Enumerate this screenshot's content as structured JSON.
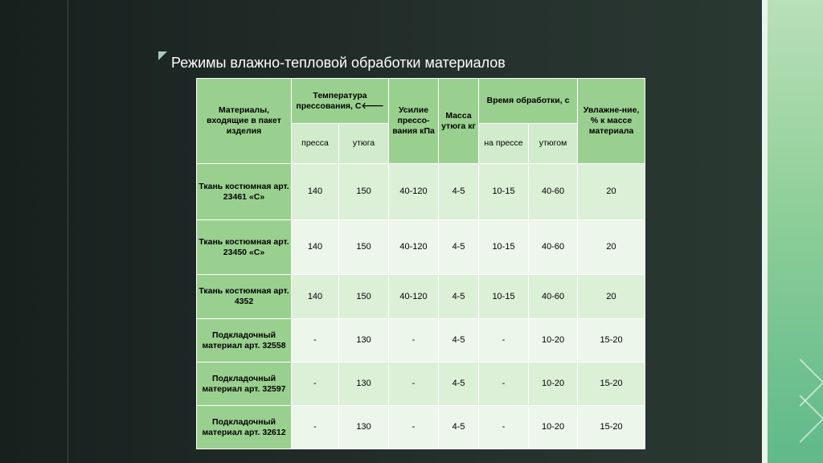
{
  "slide": {
    "title": "Режимы влажно-тепловой обработки материалов"
  },
  "table": {
    "headers": {
      "materials": "Материалы, входящие в пакет изделия",
      "temperature": "Температура прессования, С",
      "temperature_mark": "🡐",
      "press_force": "Усилие прессо-вания кПа",
      "iron_mass": "Масса утюга кг",
      "time": "Время обработки, с",
      "moisture": "Увлажне-ние, % к массе материала"
    },
    "subheaders": {
      "temp_press": "пресса",
      "temp_iron": "утюга",
      "time_press": "на прессе",
      "time_iron": "утюгом"
    },
    "rows": [
      {
        "material": "Ткань костюмная арт. 23461 «С»",
        "temp_press": "140",
        "temp_iron": "150",
        "force": "40-120",
        "mass": "4-5",
        "time_press": "10-15",
        "time_iron": "40-60",
        "moisture": "20"
      },
      {
        "material": "Ткань костюмная арт. 23450 «С»",
        "temp_press": "140",
        "temp_iron": "150",
        "force": "40-120",
        "mass": "4-5",
        "time_press": "10-15",
        "time_iron": "40-60",
        "moisture": "20"
      },
      {
        "material": "Ткань костюмная арт. 4352",
        "temp_press": "140",
        "temp_iron": "150",
        "force": "40-120",
        "mass": "4-5",
        "time_press": "10-15",
        "time_iron": "40-60",
        "moisture": "20"
      },
      {
        "material": "Подкладочный материал арт. 32558",
        "temp_press": "-",
        "temp_iron": "130",
        "force": "-",
        "mass": "4-5",
        "time_press": "-",
        "time_iron": "10-20",
        "moisture": "15-20"
      },
      {
        "material": "Подкладочный материал арт. 32597",
        "temp_press": "-",
        "temp_iron": "130",
        "force": "-",
        "mass": "4-5",
        "time_press": "-",
        "time_iron": "10-20",
        "moisture": "15-20"
      },
      {
        "material": "Подкладочный материал арт. 32612",
        "temp_press": "-",
        "temp_iron": "130",
        "force": "-",
        "mass": "4-5",
        "time_press": "-",
        "time_iron": "10-20",
        "moisture": "15-20"
      }
    ]
  }
}
